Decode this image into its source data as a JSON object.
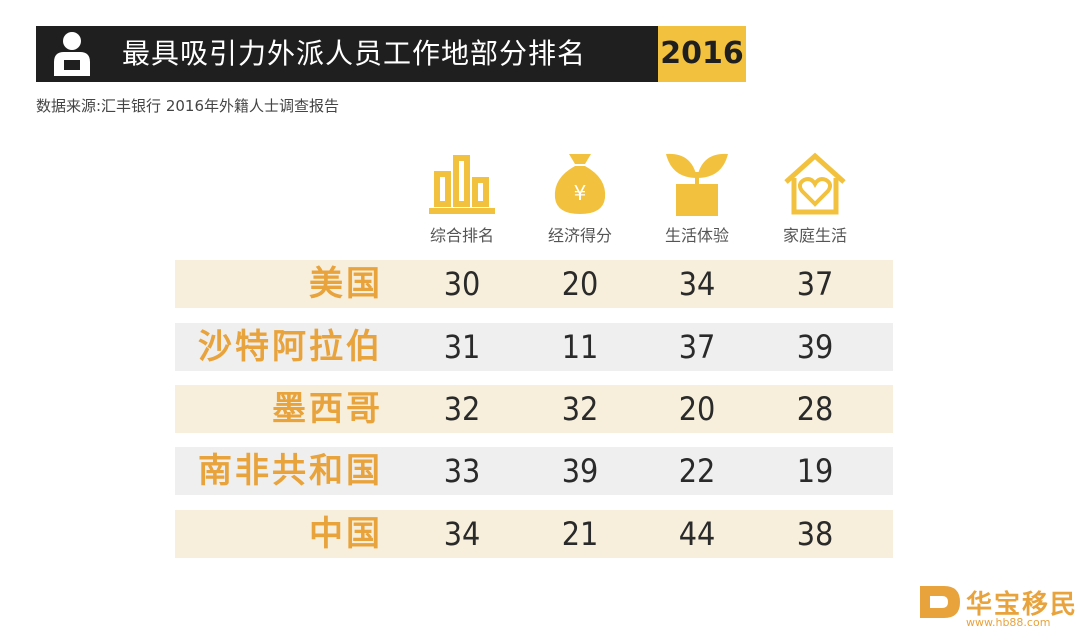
{
  "header": {
    "title": "最具吸引力外派人员工作地部分排名",
    "year": "2016",
    "source": "数据来源:汇丰银行 2016年外籍人士调查报告"
  },
  "columns": [
    {
      "label": "综合排名",
      "icon": "bar-chart-icon"
    },
    {
      "label": "经济得分",
      "icon": "money-bag-icon"
    },
    {
      "label": "生活体验",
      "icon": "plant-pot-icon"
    },
    {
      "label": "家庭生活",
      "icon": "house-heart-icon"
    }
  ],
  "chart_data": {
    "type": "table",
    "title": "最具吸引力外派人员工作地部分排名",
    "columns": [
      "综合排名",
      "经济得分",
      "生活体验",
      "家庭生活"
    ],
    "rows": [
      {
        "country": "美国",
        "values": [
          30,
          20,
          34,
          37
        ]
      },
      {
        "country": "沙特阿拉伯",
        "values": [
          31,
          11,
          37,
          39
        ]
      },
      {
        "country": "墨西哥",
        "values": [
          32,
          32,
          20,
          28
        ]
      },
      {
        "country": "南非共和国",
        "values": [
          33,
          39,
          22,
          19
        ]
      },
      {
        "country": "中国",
        "values": [
          34,
          21,
          44,
          38
        ]
      }
    ]
  },
  "watermark": {
    "name": "华宝移民",
    "url": "www.hb88.com"
  },
  "colors": {
    "accent": "#e8a33c",
    "gold": "#f2c23e",
    "dark": "#1f1f1f"
  }
}
